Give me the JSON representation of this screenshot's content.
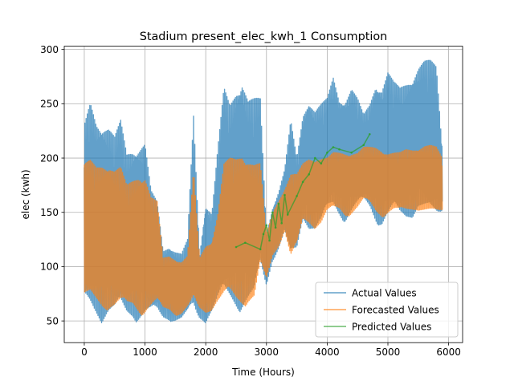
{
  "chart_data": {
    "type": "line",
    "title": "Stadium present_elec_kwh_1 Consumption",
    "xlabel": "Time (Hours)",
    "ylabel": "elec (kwh)",
    "xlim": [
      -330,
      6230
    ],
    "ylim": [
      30,
      303
    ],
    "x_ticks": [
      0,
      1000,
      2000,
      3000,
      4000,
      5000,
      6000
    ],
    "x_tick_labels": [
      "0",
      "1000",
      "2000",
      "3000",
      "4000",
      "5000",
      "6000"
    ],
    "y_ticks": [
      50,
      100,
      150,
      200,
      250,
      300
    ],
    "y_tick_labels": [
      "50",
      "100",
      "150",
      "200",
      "250",
      "300"
    ],
    "grid": true,
    "legend_position": "lower-right",
    "series": [
      {
        "name": "Actual Values",
        "color": "#1f77b4",
        "x": [
          0,
          100,
          200,
          300,
          400,
          500,
          600,
          700,
          800,
          900,
          1000,
          1100,
          1200,
          1300,
          1400,
          1500,
          1600,
          1700,
          1800,
          1900,
          2000,
          2100,
          2200,
          2300,
          2400,
          2500,
          2600,
          2700,
          2800,
          2900,
          3000,
          3100,
          3200,
          3300,
          3400,
          3500,
          3600,
          3700,
          3800,
          3900,
          4000,
          4100,
          4200,
          4300,
          4400,
          4500,
          4600,
          4700,
          4800,
          4900,
          5000,
          5100,
          5200,
          5300,
          5400,
          5500,
          5600,
          5700,
          5800,
          5900
        ],
        "high": [
          230,
          252,
          235,
          233,
          230,
          220,
          235,
          205,
          210,
          212,
          215,
          170,
          160,
          115,
          120,
          115,
          112,
          125,
          240,
          112,
          160,
          150,
          210,
          265,
          250,
          265,
          275,
          255,
          255,
          255,
          130,
          155,
          170,
          190,
          235,
          200,
          240,
          255,
          245,
          250,
          255,
          275,
          255,
          255,
          265,
          255,
          240,
          250,
          270,
          265,
          280,
          270,
          265,
          270,
          275,
          285,
          290,
          290,
          285,
          205
        ],
        "low": [
          55,
          52,
          50,
          48,
          50,
          48,
          50,
          48,
          50,
          48,
          48,
          50,
          52,
          50,
          50,
          48,
          48,
          52,
          50,
          50,
          48,
          55,
          60,
          60,
          60,
          58,
          58,
          60,
          60,
          90,
          80,
          105,
          115,
          130,
          100,
          110,
          140,
          135,
          130,
          135,
          145,
          150,
          145,
          140,
          145,
          150,
          155,
          150,
          140,
          135,
          140,
          145,
          140,
          140,
          145,
          150,
          145,
          140,
          140,
          150
        ]
      },
      {
        "name": "Forecasted Values",
        "color": "#ff7f0e",
        "x": [
          0,
          100,
          200,
          300,
          400,
          500,
          600,
          700,
          800,
          900,
          1000,
          1100,
          1200,
          1300,
          1400,
          1500,
          1600,
          1700,
          1800,
          1900,
          2000,
          2100,
          2200,
          2300,
          2400,
          2500,
          2600,
          2700,
          2800,
          2900,
          3000,
          3100,
          3200,
          3300,
          3400,
          3500,
          3600,
          3700,
          3800,
          3900,
          4000,
          4100,
          4200,
          4300,
          4400,
          4500,
          4600,
          4700,
          4800,
          4900,
          5000,
          5100,
          5200,
          5300,
          5400,
          5500,
          5600,
          5700,
          5800,
          5900
        ],
        "high": [
          195,
          198,
          192,
          195,
          196,
          190,
          192,
          175,
          180,
          185,
          185,
          165,
          160,
          108,
          110,
          108,
          105,
          110,
          190,
          108,
          120,
          125,
          150,
          195,
          200,
          200,
          205,
          200,
          195,
          195,
          130,
          150,
          162,
          172,
          185,
          185,
          195,
          200,
          200,
          200,
          200,
          205,
          205,
          205,
          205,
          205,
          210,
          210,
          210,
          208,
          205,
          205,
          205,
          208,
          208,
          210,
          212,
          212,
          210,
          200
        ],
        "low": [
          65,
          62,
          60,
          58,
          60,
          58,
          58,
          55,
          58,
          55,
          55,
          58,
          60,
          58,
          58,
          55,
          55,
          60,
          58,
          58,
          55,
          60,
          65,
          65,
          65,
          62,
          62,
          65,
          65,
          95,
          85,
          108,
          118,
          132,
          105,
          115,
          140,
          138,
          135,
          138,
          148,
          150,
          150,
          145,
          148,
          152,
          158,
          155,
          148,
          145,
          148,
          150,
          148,
          148,
          150,
          152,
          150,
          148,
          145,
          148
        ]
      },
      {
        "name": "Predicted Values",
        "color": "#2ca02c",
        "points": [
          [
            2500,
            118
          ],
          [
            2650,
            122
          ],
          [
            2900,
            116
          ],
          [
            2950,
            130
          ],
          [
            3000,
            138
          ],
          [
            3050,
            124
          ],
          [
            3100,
            150
          ],
          [
            3150,
            136
          ],
          [
            3200,
            158
          ],
          [
            3250,
            140
          ],
          [
            3300,
            166
          ],
          [
            3350,
            148
          ],
          [
            3500,
            165
          ],
          [
            3600,
            178
          ],
          [
            3700,
            185
          ],
          [
            3800,
            200
          ],
          [
            3900,
            195
          ],
          [
            4000,
            205
          ],
          [
            4100,
            210
          ],
          [
            4200,
            208
          ],
          [
            4400,
            205
          ],
          [
            4600,
            212
          ],
          [
            4700,
            222
          ]
        ]
      }
    ]
  }
}
